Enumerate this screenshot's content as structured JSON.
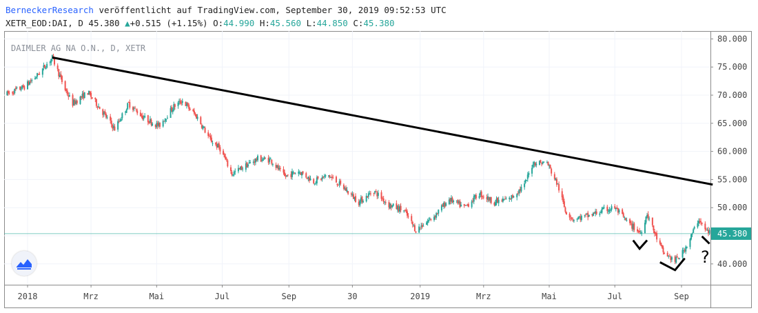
{
  "header": {
    "publisher": "BerneckerResearch",
    "published_text": "veröffentlicht auf TradingView.com, September 30, 2019 09:52:53 UTC",
    "symbol": "XETR_EOD:DAI, D",
    "last": "45.380",
    "change": "+0.515 (+1.15%)",
    "open_label": "O:",
    "open": "44.990",
    "high_label": "H:",
    "high": "45.560",
    "low_label": "L:",
    "low": "44.850",
    "close_label": "C:",
    "close": "45.380"
  },
  "colors": {
    "up": "#26a69a",
    "down": "#ef5350",
    "trendline": "#000000",
    "price_line": "#26a69a",
    "brand": "#2962ff"
  },
  "chart_data": {
    "type": "candlestick",
    "title": "DAIMLER AG NA O.N., D, XETR",
    "x_tick_labels": [
      "2018",
      "Mrz",
      "Mai",
      "Jul",
      "Sep",
      "30",
      "2019",
      "Mrz",
      "Mai",
      "Jul",
      "Sep"
    ],
    "y_tick_labels": [
      "40.000",
      "45.000",
      "50.000",
      "55.000",
      "60.000",
      "65.000",
      "70.000",
      "75.000",
      "80.000"
    ],
    "ylim": [
      36.3,
      81.4
    ],
    "current_price_label": "45.380",
    "current_price": 45.38,
    "grid": true,
    "price_path": [
      [
        "2017-12-13",
        70.2
      ],
      [
        "2017-12-29",
        71.5
      ],
      [
        "2018-01-10",
        73.5
      ],
      [
        "2018-01-24",
        76.7
      ],
      [
        "2018-02-05",
        71.0
      ],
      [
        "2018-02-12",
        68.5
      ],
      [
        "2018-02-26",
        70.5
      ],
      [
        "2018-03-08",
        68.0
      ],
      [
        "2018-03-23",
        64.0
      ],
      [
        "2018-04-05",
        68.5
      ],
      [
        "2018-04-19",
        66.0
      ],
      [
        "2018-05-03",
        64.5
      ],
      [
        "2018-05-17",
        68.0
      ],
      [
        "2018-05-25",
        69.0
      ],
      [
        "2018-06-08",
        66.0
      ],
      [
        "2018-06-20",
        62.0
      ],
      [
        "2018-06-29",
        60.5
      ],
      [
        "2018-07-10",
        56.0
      ],
      [
        "2018-07-23",
        57.5
      ],
      [
        "2018-08-03",
        58.7
      ],
      [
        "2018-08-15",
        58.5
      ],
      [
        "2018-08-28",
        55.5
      ],
      [
        "2018-09-10",
        56.5
      ],
      [
        "2018-09-24",
        54.7
      ],
      [
        "2018-10-08",
        55.7
      ],
      [
        "2018-10-22",
        53.5
      ],
      [
        "2018-11-05",
        51.0
      ],
      [
        "2018-11-19",
        53.0
      ],
      [
        "2018-12-03",
        50.5
      ],
      [
        "2018-12-17",
        49.5
      ],
      [
        "2018-12-28",
        46.0
      ],
      [
        "2019-01-14",
        48.5
      ],
      [
        "2019-01-28",
        51.5
      ],
      [
        "2019-02-11",
        50.0
      ],
      [
        "2019-02-25",
        52.5
      ],
      [
        "2019-03-11",
        51.0
      ],
      [
        "2019-03-25",
        51.5
      ],
      [
        "2019-04-08",
        54.0
      ],
      [
        "2019-04-16",
        58.0
      ],
      [
        "2019-04-29",
        58.0
      ],
      [
        "2019-05-09",
        54.0
      ],
      [
        "2019-05-16",
        49.5
      ],
      [
        "2019-05-23",
        48.0
      ],
      [
        "2019-06-06",
        48.5
      ],
      [
        "2019-06-20",
        49.5
      ],
      [
        "2019-07-01",
        50.0
      ],
      [
        "2019-07-12",
        47.5
      ],
      [
        "2019-07-25",
        45.5
      ],
      [
        "2019-07-31",
        49.0
      ],
      [
        "2019-08-08",
        45.0
      ],
      [
        "2019-08-15",
        42.0
      ],
      [
        "2019-08-26",
        40.5
      ],
      [
        "2019-09-02",
        42.0
      ],
      [
        "2019-09-09",
        44.5
      ],
      [
        "2019-09-17",
        48.0
      ],
      [
        "2019-09-23",
        46.0
      ],
      [
        "2019-09-30",
        45.38
      ]
    ],
    "annotations": {
      "trendline": [
        [
          "2018-01-24",
          76.7
        ],
        [
          "2019-09-30",
          54.1
        ]
      ],
      "question_mark": "?"
    }
  }
}
